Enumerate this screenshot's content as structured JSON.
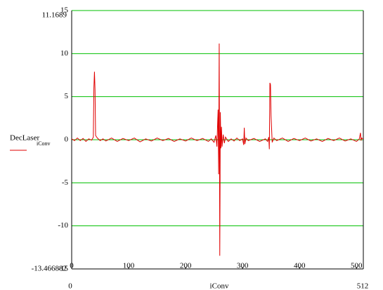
{
  "chart_data": {
    "type": "line",
    "x_label": "iConv",
    "annotations": [
      "11.1689",
      "-13.466882"
    ],
    "xlim": [
      0,
      512
    ],
    "xticks": [
      0,
      100,
      200,
      300,
      400,
      500
    ],
    "ylim": [
      -15,
      15
    ],
    "yticks": [
      -15,
      -10,
      -5,
      0,
      5,
      10,
      15
    ],
    "grid": true,
    "grid_color": "#00c000",
    "x": [
      0,
      5,
      10,
      15,
      20,
      25,
      30,
      35,
      38,
      39,
      40,
      41,
      42,
      43,
      45,
      50,
      55,
      60,
      70,
      80,
      90,
      100,
      110,
      120,
      130,
      140,
      150,
      160,
      170,
      180,
      190,
      200,
      210,
      220,
      230,
      240,
      245,
      250,
      253,
      255,
      256,
      257,
      258,
      259,
      260,
      261,
      262,
      263,
      264,
      266,
      268,
      270,
      275,
      280,
      285,
      290,
      295,
      300,
      302,
      303,
      304,
      306,
      310,
      320,
      330,
      340,
      344,
      346,
      347,
      348,
      349,
      350,
      352,
      355,
      360,
      370,
      380,
      390,
      400,
      410,
      420,
      430,
      440,
      450,
      460,
      470,
      480,
      490,
      500,
      505,
      507,
      508,
      509,
      512
    ],
    "series": [
      {
        "name": "DecLaser",
        "subscript": "iConv",
        "color": "#e00000",
        "values": [
          0.1,
          -0.1,
          0.2,
          -0.1,
          0.15,
          -0.2,
          0.1,
          -0.05,
          0.3,
          6.0,
          7.9,
          5.8,
          0.5,
          0.4,
          0.2,
          -0.1,
          0.1,
          -0.15,
          0.2,
          -0.2,
          0.15,
          -0.1,
          0.2,
          -0.25,
          0.1,
          -0.15,
          0.2,
          -0.1,
          0.15,
          -0.2,
          0.1,
          -0.15,
          0.2,
          -0.1,
          0.15,
          -0.2,
          0.1,
          -0.3,
          0.5,
          -0.8,
          1.5,
          3.5,
          -4.0,
          11.1689,
          -13.466882,
          3.2,
          -1.0,
          1.5,
          -0.8,
          0.6,
          -0.4,
          0.3,
          -0.2,
          0.1,
          -0.15,
          0.2,
          -0.1,
          0.1,
          -0.6,
          1.4,
          -0.5,
          0.2,
          -0.1,
          0.15,
          -0.2,
          0.1,
          -0.2,
          0.3,
          -1.1,
          6.6,
          6.4,
          2.8,
          -0.3,
          0.2,
          -0.1,
          0.2,
          -0.2,
          0.15,
          -0.1,
          0.2,
          -0.15,
          0.1,
          -0.2,
          0.15,
          -0.1,
          0.2,
          -0.15,
          0.1,
          -0.2,
          0.1,
          0.8,
          -0.1,
          0.2,
          0.1
        ]
      }
    ]
  }
}
